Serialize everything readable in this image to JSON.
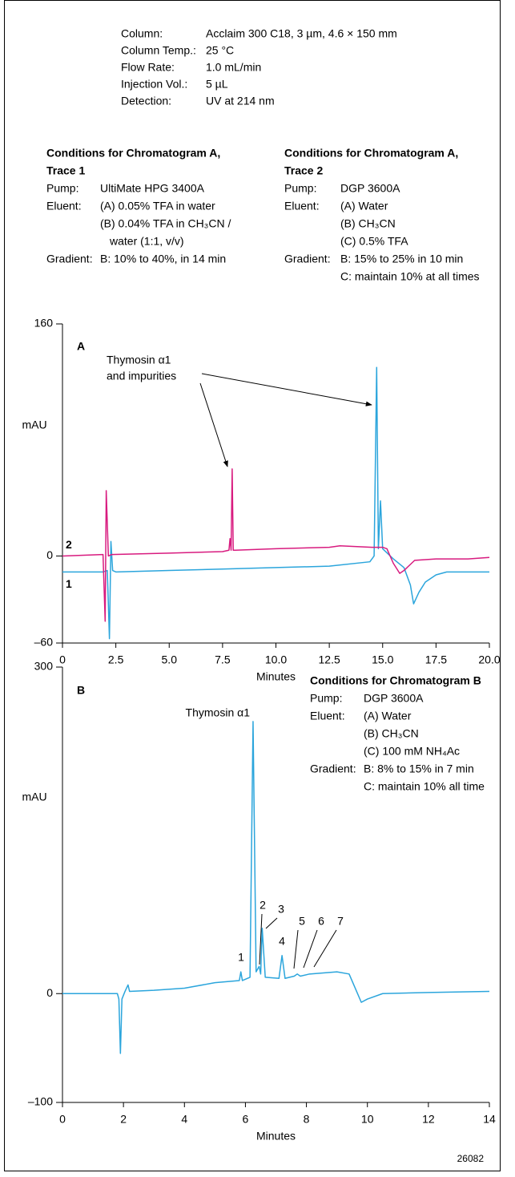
{
  "column_conditions": [
    [
      "Column:",
      "Acclaim 300 C18, 3 µm, 4.6 × 150 mm"
    ],
    [
      "Column Temp.:",
      "25 °C"
    ],
    [
      "Flow Rate:",
      "1.0 mL/min"
    ],
    [
      "Injection Vol.:",
      "5 µL"
    ],
    [
      "Detection:",
      "UV at 214 nm"
    ]
  ],
  "conditions_a_trace_1": {
    "heading": [
      "Conditions for Chromatogram A,",
      "Trace 1"
    ],
    "rows": [
      {
        "label": "Pump:",
        "values": [
          "UltiMate HPG 3400A"
        ]
      },
      {
        "label": "Eluent:",
        "values": [
          "(A) 0.05% TFA in water",
          "(B) 0.04% TFA in CH₃CN /",
          "water (1:1, v/v)"
        ]
      },
      {
        "label": "Gradient:",
        "values": [
          "B: 10% to 40%, in 14 min"
        ]
      }
    ]
  },
  "conditions_a_trace_2": {
    "heading": [
      "Conditions for Chromatogram A,",
      "Trace 2"
    ],
    "rows": [
      {
        "label": "Pump:",
        "values": [
          "DGP 3600A"
        ]
      },
      {
        "label": "Eluent:",
        "values": [
          "(A) Water",
          "(B) CH₃CN",
          "(C) 0.5% TFA"
        ]
      },
      {
        "label": "Gradient:",
        "values": [
          "B: 15% to 25% in 10 min",
          "C: maintain 10% at all times"
        ]
      }
    ]
  },
  "conditions_b": {
    "heading": [
      "Conditions for Chromatogram B"
    ],
    "rows": [
      {
        "label": "Pump:",
        "values": [
          "DGP 3600A"
        ]
      },
      {
        "label": "Eluent:",
        "values": [
          "(A) Water",
          "(B) CH₃CN",
          "(C) 100 mM NH₄Ac"
        ]
      },
      {
        "label": "Gradient:",
        "values": [
          "B: 8% to 15% in 7 min",
          "C: maintain 10% all time"
        ]
      }
    ]
  },
  "figure_number": "26082",
  "chart_data": [
    {
      "type": "line",
      "title": "A",
      "x_label": "Minutes",
      "y_label": "mAU",
      "xlim": [
        0,
        20
      ],
      "ylim": [
        -60,
        160
      ],
      "xticks": [
        0,
        2.5,
        {
          "value": 5,
          "label": "5.0"
        },
        7.5,
        {
          "value": 10,
          "label": "10.0"
        },
        12.5,
        {
          "value": 15,
          "label": "15.0"
        },
        17.5,
        {
          "value": 20,
          "label": "20.0"
        }
      ],
      "yticks": [
        {
          "value": -60,
          "label": "–60"
        },
        0,
        160
      ],
      "annotations": [
        "Thymosin α1",
        "and impurities"
      ],
      "series": [
        {
          "name": "1",
          "color": "#2ba5dc",
          "x": [
            0,
            1.9,
            2.1,
            2.2,
            2.27,
            2.35,
            2.5,
            5,
            7.5,
            10,
            12.5,
            14.4,
            14.6,
            14.72,
            14.8,
            14.9,
            15,
            15.5,
            16,
            16.3,
            16.45,
            16.7,
            17,
            17.5,
            18,
            20
          ],
          "values": [
            -11,
            -11,
            -10,
            -57,
            10,
            -10,
            -11,
            -10,
            -9,
            -8,
            -7,
            -4,
            0,
            130,
            5,
            38,
            5,
            -2,
            -8,
            -20,
            -33,
            -25,
            -18,
            -13,
            -11,
            -11
          ]
        },
        {
          "name": "2",
          "color": "#d81b7f",
          "x": [
            0,
            1.9,
            2.0,
            2.05,
            2.15,
            2.3,
            5,
            7.5,
            7.8,
            7.85,
            7.9,
            7.95,
            8.0,
            8.1,
            10,
            12.5,
            13,
            14.5,
            15,
            15.2,
            15.5,
            15.8,
            16,
            16.5,
            17.5,
            19,
            20
          ],
          "values": [
            0,
            1,
            -45,
            45,
            0,
            1,
            2,
            3,
            4,
            12,
            4,
            60,
            4,
            4,
            5,
            6,
            7,
            6,
            6,
            5,
            -5,
            -12,
            -10,
            -3,
            -2,
            -2,
            -1
          ]
        }
      ]
    },
    {
      "type": "line",
      "title": "B",
      "x_label": "Minutes",
      "y_label": "mAU",
      "xlim": [
        0,
        14
      ],
      "ylim": [
        -100,
        300
      ],
      "xticks": [
        0,
        2,
        4,
        6,
        8,
        10,
        12,
        14
      ],
      "yticks": [
        {
          "value": -100,
          "label": "–100"
        },
        0,
        300
      ],
      "annotations": [
        "Thymosin α1"
      ],
      "peak_labels": [
        "1",
        "2",
        "3",
        "4",
        "5",
        "6",
        "7"
      ],
      "series": [
        {
          "color": "#2ba5dc",
          "x": [
            0,
            1.8,
            1.85,
            1.9,
            1.95,
            2.05,
            2.15,
            2.2,
            3,
            4,
            5,
            5.8,
            5.85,
            5.9,
            6.15,
            6.25,
            6.35,
            6.45,
            6.5,
            6.55,
            6.65,
            7.1,
            7.2,
            7.3,
            7.6,
            7.7,
            7.8,
            8.1,
            9,
            9.4,
            9.6,
            9.8,
            10,
            10.5,
            12,
            14
          ],
          "values": [
            0,
            0,
            -5,
            -55,
            -5,
            2,
            8,
            2,
            3,
            5,
            10,
            12,
            20,
            12,
            15,
            250,
            20,
            25,
            18,
            60,
            15,
            14,
            35,
            14,
            16,
            18,
            16,
            18,
            20,
            18,
            5,
            -8,
            -5,
            0,
            1,
            2
          ]
        }
      ]
    }
  ]
}
